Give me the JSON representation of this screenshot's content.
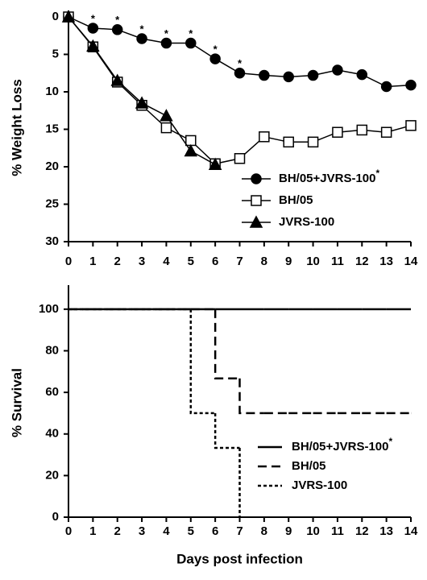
{
  "chart_data": [
    {
      "type": "line",
      "y_label": "% Weight Loss",
      "y_inverted": true,
      "x": [
        0,
        1,
        2,
        3,
        4,
        5,
        6,
        7,
        8,
        9,
        10,
        11,
        12,
        13,
        14
      ],
      "xlim": [
        0,
        14
      ],
      "xticks": [
        0,
        1,
        2,
        3,
        4,
        5,
        6,
        7,
        8,
        9,
        10,
        11,
        12,
        13,
        14
      ],
      "ylim": [
        0,
        30
      ],
      "yticks": [
        0,
        5,
        10,
        15,
        20,
        25,
        30
      ],
      "legend": "lower right",
      "series": [
        {
          "name": "BH/05+JVRS-100",
          "name_superscript": "*",
          "color": "#000000",
          "marker": "circle",
          "marker_filled": true,
          "values": [
            0,
            1.5,
            1.7,
            2.9,
            3.5,
            3.5,
            5.6,
            7.5,
            7.8,
            8.0,
            7.8,
            7.1,
            7.7,
            9.3,
            9.1
          ]
        },
        {
          "name": "BH/05",
          "color": "#000000",
          "marker": "square",
          "marker_filled": false,
          "values": [
            0,
            4.0,
            8.7,
            11.8,
            14.8,
            16.5,
            19.6,
            18.9,
            16.0,
            16.7,
            16.7,
            15.4,
            15.1,
            15.4,
            14.5
          ]
        },
        {
          "name": "JVRS-100",
          "color": "#000000",
          "marker": "triangle",
          "marker_filled": true,
          "values": [
            0,
            3.9,
            8.5,
            11.5,
            13.2,
            17.9,
            19.7,
            null,
            null,
            null,
            null,
            null,
            null,
            null,
            null
          ]
        }
      ],
      "annotations": [
        {
          "label": "*",
          "x": 1
        },
        {
          "label": "*",
          "x": 2
        },
        {
          "label": "*",
          "x": 3
        },
        {
          "label": "*",
          "x": 4
        },
        {
          "label": "*",
          "x": 5
        },
        {
          "label": "*",
          "x": 6
        },
        {
          "label": "*",
          "x": 7
        }
      ]
    },
    {
      "type": "step",
      "y_label": "% Survival",
      "x_label": "Days post infection",
      "x": [
        0,
        1,
        2,
        3,
        4,
        5,
        6,
        7,
        8,
        9,
        10,
        11,
        12,
        13,
        14
      ],
      "xlim": [
        0,
        14
      ],
      "xticks": [
        0,
        1,
        2,
        3,
        4,
        5,
        6,
        7,
        8,
        9,
        10,
        11,
        12,
        13,
        14
      ],
      "ylim": [
        0,
        110
      ],
      "yticks": [
        0,
        20,
        40,
        60,
        80,
        100
      ],
      "legend": "lower right",
      "series": [
        {
          "name": "BH/05+JVRS-100",
          "name_superscript": "*",
          "color": "#000000",
          "linestyle": "solid",
          "values": [
            100,
            100,
            100,
            100,
            100,
            100,
            100,
            100,
            100,
            100,
            100,
            100,
            100,
            100,
            100
          ]
        },
        {
          "name": "BH/05",
          "color": "#000000",
          "linestyle": "dashed",
          "values": [
            100,
            100,
            100,
            100,
            100,
            100,
            66.7,
            50,
            50,
            50,
            50,
            50,
            50,
            50,
            50
          ]
        },
        {
          "name": "JVRS-100",
          "color": "#000000",
          "linestyle": "dotted",
          "values": [
            100,
            100,
            100,
            100,
            100,
            50,
            33.3,
            0,
            null,
            null,
            null,
            null,
            null,
            null,
            null
          ]
        }
      ]
    }
  ]
}
